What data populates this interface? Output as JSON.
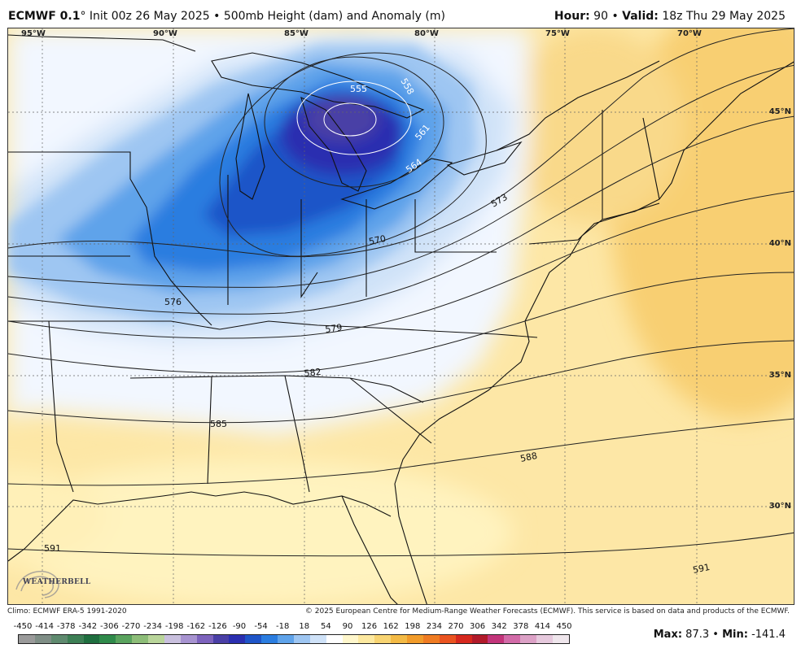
{
  "header": {
    "model": "ECMWF 0.1",
    "degree": "°",
    "init": "Init 00z 26 May 2025",
    "bullet": "•",
    "field": "500mb Height (dam) and Anomaly (m)",
    "hour_label": "Hour:",
    "hour_value": "90",
    "valid_label": "Valid:",
    "valid_value": "18z Thu 29 May 2025"
  },
  "map": {
    "longitudes": [
      "95°W",
      "90°W",
      "85°W",
      "80°W",
      "75°W",
      "70°W"
    ],
    "latitudes": [
      "45°N",
      "40°N",
      "35°N",
      "30°N"
    ],
    "contours": [
      "555",
      "558",
      "561",
      "564",
      "570",
      "573",
      "576",
      "579",
      "582",
      "585",
      "588",
      "591",
      "591"
    ],
    "logo_text": "WEATHERBELL"
  },
  "footer": {
    "climo": "Climo: ECMWF ERA-5 1991-2020",
    "copyright": "© 2025 European Centre for Medium-Range Weather Forecasts (ECMWF). This service is based on data and products of the ECMWF."
  },
  "colorbar": {
    "ticks": [
      "-450",
      "-414",
      "-378",
      "-342",
      "-306",
      "-270",
      "-234",
      "-198",
      "-162",
      "-126",
      "-90",
      "-54",
      "-18",
      "18",
      "54",
      "90",
      "126",
      "162",
      "198",
      "234",
      "270",
      "306",
      "342",
      "378",
      "414",
      "450"
    ],
    "colors": [
      "#9a9a9a",
      "#7f8e86",
      "#5f8a6f",
      "#3d7f55",
      "#1f6e3f",
      "#2f8a4a",
      "#5aa35e",
      "#8dbd78",
      "#b9d59a",
      "#c9c0de",
      "#a793d0",
      "#7d63bd",
      "#4a3fa6",
      "#2b2fb0",
      "#1f55c8",
      "#2b7de0",
      "#5fa3ea",
      "#9ec6f2",
      "#cfe2f8",
      "#ffffff",
      "#fff7cc",
      "#fde9a0",
      "#f8d472",
      "#f3ba45",
      "#f19b2a",
      "#ef7b22",
      "#ea5320",
      "#d6281e",
      "#b11a2a",
      "#c2347a",
      "#d26ba8",
      "#dca1c6",
      "#e6c9dd",
      "#efe6ec"
    ],
    "max_label": "Max:",
    "max_value": "87.3",
    "sep": "•",
    "min_label": "Min:",
    "min_value": "-141.4"
  }
}
